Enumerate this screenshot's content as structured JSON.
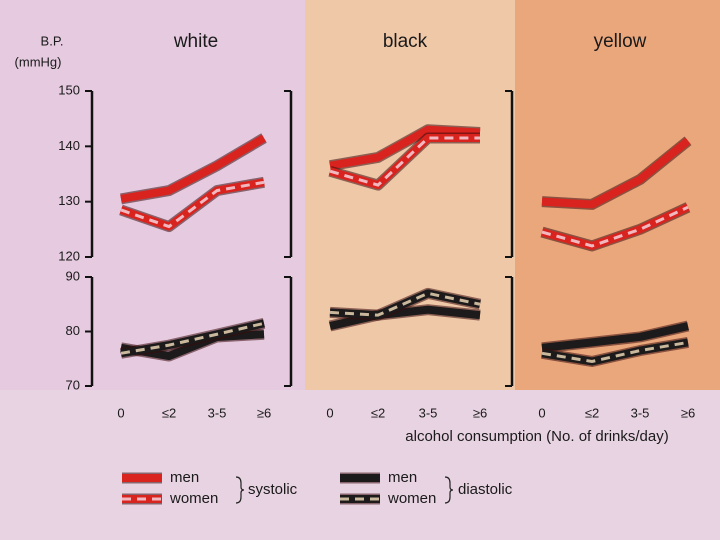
{
  "ylabel": [
    "B.P.",
    "(mmHg)"
  ],
  "xlabel": "alcohol consumption (No. of drinks/day)",
  "legend_groups": [
    "systolic",
    "diastolic"
  ],
  "chart_data": [
    {
      "type": "line",
      "title": "white",
      "categories": [
        "0",
        "≤2",
        "3-5",
        "≥6"
      ],
      "ylim": [
        120,
        150
      ],
      "yticks": [
        120,
        130,
        140,
        150
      ],
      "y2lim": [
        70,
        90
      ],
      "y2ticks": [
        70,
        80,
        90
      ],
      "series": [
        {
          "name": "men",
          "color": "#d8231f",
          "values": [
            130.5,
            132,
            136.5,
            141.5
          ]
        },
        {
          "name": "women",
          "color": "#d8231f",
          "dash_color": "#f2b8c0",
          "values": [
            128.5,
            125.5,
            132,
            133.5
          ]
        },
        {
          "name": "men",
          "color": "#1c1a1a",
          "axis": "y2",
          "values": [
            77,
            75.5,
            79,
            79.5
          ]
        },
        {
          "name": "women",
          "color": "#1c1a1a",
          "dash_color": "#c9b89c",
          "axis": "y2",
          "values": [
            76,
            77.5,
            79.5,
            81.5
          ]
        }
      ]
    },
    {
      "type": "line",
      "title": "black",
      "categories": [
        "0",
        "≤2",
        "3-5",
        "≥6"
      ],
      "ylim": [
        120,
        150
      ],
      "y2lim": [
        70,
        90
      ],
      "series": [
        {
          "name": "men",
          "color": "#d8231f",
          "values": [
            136.5,
            138,
            143,
            142.5
          ]
        },
        {
          "name": "women",
          "color": "#d8231f",
          "dash_color": "#f2b8c0",
          "values": [
            135.5,
            133,
            141.5,
            141.5
          ]
        },
        {
          "name": "men",
          "color": "#1c1a1a",
          "axis": "y2",
          "values": [
            81,
            83,
            84,
            83
          ]
        },
        {
          "name": "women",
          "color": "#1c1a1a",
          "dash_color": "#c9b89c",
          "axis": "y2",
          "values": [
            83.5,
            83,
            87,
            85
          ]
        }
      ]
    },
    {
      "type": "line",
      "title": "yellow",
      "categories": [
        "0",
        "≤2",
        "3-5",
        "≥6"
      ],
      "ylim": [
        120,
        150
      ],
      "y2lim": [
        70,
        90
      ],
      "series": [
        {
          "name": "men",
          "color": "#d8231f",
          "values": [
            130,
            129.5,
            134,
            141
          ]
        },
        {
          "name": "women",
          "color": "#d8231f",
          "dash_color": "#f2b8c0",
          "values": [
            124.5,
            122,
            125,
            129
          ]
        },
        {
          "name": "men",
          "color": "#1c1a1a",
          "axis": "y2",
          "values": [
            77,
            78,
            79,
            81
          ]
        },
        {
          "name": "women",
          "color": "#1c1a1a",
          "dash_color": "#c9b89c",
          "axis": "y2",
          "values": [
            76,
            74.5,
            76.5,
            78
          ]
        }
      ]
    }
  ]
}
